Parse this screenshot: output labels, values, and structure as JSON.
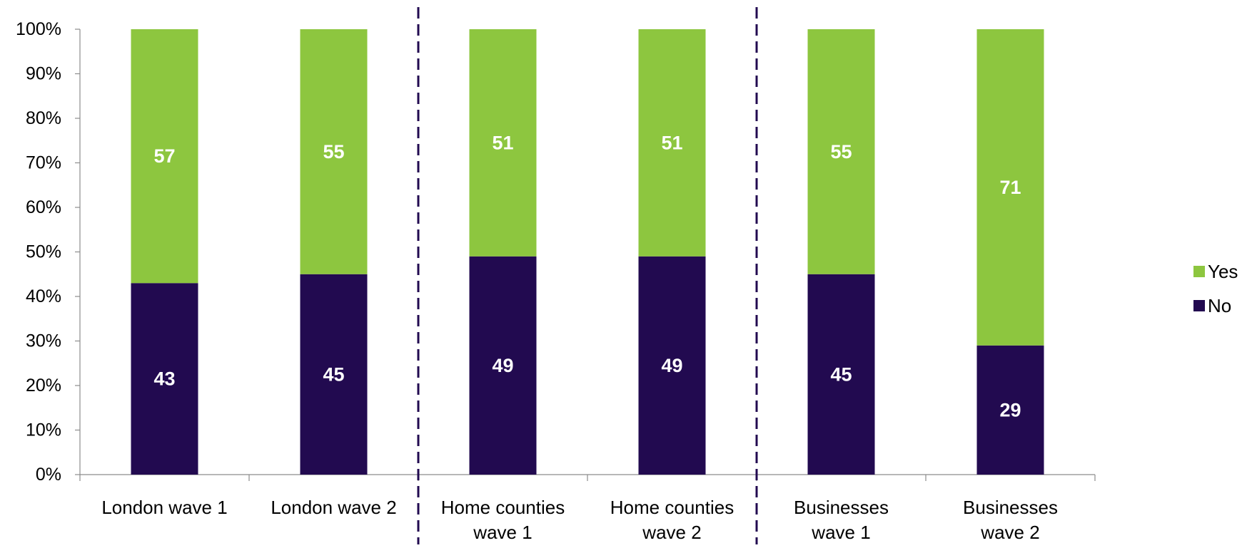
{
  "chart_data": {
    "type": "bar",
    "stacked": true,
    "percent_stacked": true,
    "categories": [
      [
        "London wave 1"
      ],
      [
        "London wave 2"
      ],
      [
        "Home counties",
        "wave 1"
      ],
      [
        "Home counties",
        "wave 2"
      ],
      [
        "Businesses",
        "wave 1"
      ],
      [
        "Businesses",
        "wave 2"
      ]
    ],
    "series": [
      {
        "name": "No",
        "color": "#220a50",
        "values": [
          43,
          45,
          49,
          49,
          45,
          29
        ]
      },
      {
        "name": "Yes",
        "color": "#8dc63f",
        "values": [
          57,
          55,
          51,
          51,
          55,
          71
        ]
      }
    ],
    "y_ticks": [
      "0%",
      "10%",
      "20%",
      "30%",
      "40%",
      "50%",
      "60%",
      "70%",
      "80%",
      "90%",
      "100%"
    ],
    "ylim": [
      0,
      100
    ],
    "title": "",
    "xlabel": "",
    "ylabel": "",
    "grid": false,
    "legend": {
      "position": "right",
      "entries": [
        "Yes",
        "No"
      ]
    },
    "group_separators_after_category": [
      2,
      4
    ],
    "separator_color": "#220a50",
    "data_label_color": "#ffffff"
  }
}
